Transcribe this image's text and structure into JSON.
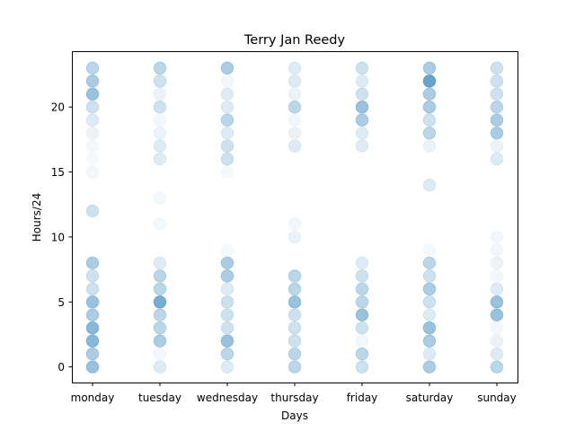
{
  "chart_data": {
    "type": "scatter",
    "title": "Terry Jan Reedy",
    "xlabel": "Days",
    "ylabel": "Hours/24",
    "categories": [
      "monday",
      "tuesday",
      "wednesday",
      "thursday",
      "friday",
      "saturday",
      "sunday"
    ],
    "yticks": [
      0,
      5,
      10,
      15,
      20
    ],
    "ylim": [
      -1.2,
      24.3
    ],
    "grid": false,
    "marker_color": "#1f77b4",
    "points": [
      {
        "day": "monday",
        "hours": [
          0,
          0.6
        ],
        "hour_1": [
          1,
          0.5
        ],
        "hour_2": [
          2,
          0.7
        ],
        "hour_3": [
          3,
          0.7
        ],
        "hour_4": [
          4,
          0.5
        ],
        "hour_5": [
          5,
          0.6
        ],
        "hour_6": [
          6,
          0.3
        ],
        "hour_7": [
          7,
          0.3
        ],
        "hour_8": [
          8,
          0.5
        ],
        "hour_12": [
          12,
          0.3
        ],
        "hour_15": [
          15,
          0.08
        ],
        "hour_16": [
          16,
          0.05
        ],
        "hour_17": [
          17,
          0.07
        ],
        "hour_18": [
          18,
          0.12
        ],
        "hour_19": [
          19,
          0.2
        ],
        "hour_20": [
          20,
          0.3
        ],
        "hour_21": [
          21,
          0.6
        ],
        "hour_22": [
          22,
          0.5
        ],
        "hour_23": [
          23,
          0.4
        ]
      }
    ],
    "series": [
      {
        "category": "monday",
        "hours": [
          0,
          1,
          2,
          3,
          4,
          5,
          6,
          7,
          8,
          12,
          15,
          16,
          17,
          18,
          19,
          20,
          21,
          22,
          23
        ],
        "intensity": [
          0.6,
          0.5,
          0.7,
          0.7,
          0.5,
          0.6,
          0.3,
          0.3,
          0.5,
          0.3,
          0.08,
          0.05,
          0.07,
          0.12,
          0.2,
          0.3,
          0.6,
          0.5,
          0.4
        ]
      },
      {
        "category": "tuesday",
        "hours": [
          0,
          1,
          2,
          3,
          4,
          5,
          6,
          7,
          8,
          11,
          13,
          16,
          17,
          18,
          19,
          20,
          21,
          22,
          23
        ],
        "intensity": [
          0.2,
          0.08,
          0.5,
          0.4,
          0.4,
          0.8,
          0.4,
          0.4,
          0.2,
          0.08,
          0.08,
          0.2,
          0.2,
          0.12,
          0.08,
          0.3,
          0.12,
          0.3,
          0.4
        ]
      },
      {
        "category": "wednesday",
        "hours": [
          0,
          1,
          2,
          3,
          4,
          5,
          6,
          7,
          8,
          9,
          15,
          16,
          17,
          18,
          19,
          20,
          21,
          22,
          23
        ],
        "intensity": [
          0.2,
          0.4,
          0.6,
          0.3,
          0.3,
          0.3,
          0.2,
          0.5,
          0.5,
          0.06,
          0.06,
          0.3,
          0.3,
          0.2,
          0.4,
          0.2,
          0.2,
          0.08,
          0.5
        ]
      },
      {
        "category": "thursday",
        "hours": [
          0,
          1,
          2,
          3,
          4,
          5,
          6,
          7,
          10,
          11,
          17,
          18,
          19,
          20,
          21,
          22,
          23
        ],
        "intensity": [
          0.4,
          0.4,
          0.3,
          0.3,
          0.3,
          0.6,
          0.4,
          0.4,
          0.12,
          0.08,
          0.2,
          0.12,
          0.08,
          0.4,
          0.12,
          0.2,
          0.2
        ]
      },
      {
        "category": "friday",
        "hours": [
          0,
          1,
          2,
          3,
          4,
          5,
          6,
          7,
          8,
          17,
          18,
          19,
          20,
          21,
          22,
          23
        ],
        "intensity": [
          0.3,
          0.4,
          0.08,
          0.3,
          0.6,
          0.4,
          0.4,
          0.3,
          0.2,
          0.2,
          0.2,
          0.5,
          0.6,
          0.3,
          0.2,
          0.3
        ]
      },
      {
        "category": "saturday",
        "hours": [
          0,
          1,
          2,
          3,
          4,
          5,
          6,
          7,
          8,
          9,
          14,
          17,
          18,
          19,
          20,
          21,
          22,
          23
        ],
        "intensity": [
          0.5,
          0.2,
          0.5,
          0.6,
          0.2,
          0.3,
          0.5,
          0.3,
          0.4,
          0.06,
          0.2,
          0.12,
          0.4,
          0.3,
          0.5,
          0.5,
          0.9,
          0.5
        ]
      },
      {
        "category": "sunday",
        "hours": [
          0,
          1,
          2,
          3,
          4,
          5,
          6,
          7,
          8,
          9,
          10,
          16,
          17,
          18,
          19,
          20,
          21,
          22,
          23
        ],
        "intensity": [
          0.4,
          0.2,
          0.12,
          0.08,
          0.6,
          0.6,
          0.2,
          0.08,
          0.12,
          0.08,
          0.08,
          0.2,
          0.12,
          0.5,
          0.5,
          0.4,
          0.3,
          0.3,
          0.3
        ]
      }
    ]
  }
}
